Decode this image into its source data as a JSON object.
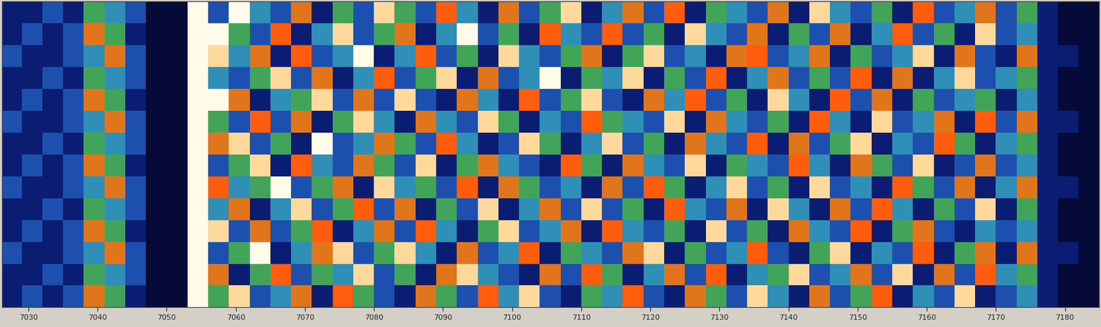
{
  "chart_data": {
    "type": "heatmap",
    "x": [
      7027.5,
      7030.5,
      7033.5,
      7036.5,
      7039.5,
      7042.5,
      7045.5,
      7048.5,
      7051.5,
      7054.5,
      7057.5,
      7060.5,
      7063.5,
      7066.5,
      7069.5,
      7072.5,
      7075.5,
      7078.5,
      7081.5,
      7084.5,
      7087.5,
      7090.5,
      7093.5,
      7096.5,
      7099.5,
      7102.5,
      7105.5,
      7108.5,
      7111.5,
      7114.5,
      7117.5,
      7120.5,
      7123.5,
      7126.5,
      7129.5,
      7132.5,
      7135.5,
      7138.5,
      7141.5,
      7144.5,
      7147.5,
      7150.5,
      7153.5,
      7156.5,
      7159.5,
      7162.5,
      7165.5,
      7168.5,
      7171.5,
      7174.5,
      7177.5,
      7180.5,
      7183.5
    ],
    "xlim": [
      7026.2,
      7184.9
    ],
    "xticks": [
      7030,
      7040,
      7050,
      7060,
      7070,
      7080,
      7090,
      7100,
      7110,
      7120,
      7130,
      7140,
      7150,
      7160,
      7170,
      7180
    ],
    "tick_labels": "x",
    "cells": [
      [
        2,
        2,
        3,
        2,
        5,
        4,
        3,
        1,
        1,
        9,
        3,
        9,
        4,
        3,
        6,
        2,
        5,
        3,
        8,
        5,
        3,
        7,
        4,
        2,
        6,
        3,
        5,
        8,
        2,
        4,
        6,
        3,
        7,
        2,
        5,
        4,
        3,
        6,
        2,
        8,
        4,
        3,
        5,
        2,
        7,
        3,
        4,
        6,
        3,
        5,
        2,
        1,
        1
      ],
      [
        2,
        3,
        2,
        3,
        6,
        5,
        2,
        1,
        1,
        9,
        9,
        5,
        3,
        7,
        2,
        4,
        8,
        3,
        5,
        6,
        2,
        4,
        9,
        3,
        5,
        2,
        7,
        4,
        3,
        7,
        3,
        5,
        2,
        8,
        4,
        3,
        6,
        2,
        5,
        3,
        6,
        2,
        4,
        7,
        3,
        5,
        2,
        8,
        3,
        4,
        2,
        1,
        1
      ],
      [
        3,
        2,
        2,
        3,
        4,
        6,
        3,
        1,
        1,
        9,
        8,
        4,
        6,
        2,
        7,
        3,
        4,
        9,
        2,
        4,
        7,
        3,
        5,
        2,
        8,
        4,
        3,
        5,
        6,
        2,
        5,
        8,
        3,
        4,
        2,
        6,
        7,
        3,
        4,
        6,
        2,
        5,
        3,
        4,
        8,
        2,
        6,
        3,
        2,
        6,
        2,
        2,
        1
      ],
      [
        2,
        2,
        3,
        2,
        5,
        4,
        3,
        1,
        1,
        9,
        4,
        3,
        5,
        8,
        3,
        6,
        2,
        4,
        7,
        3,
        5,
        8,
        2,
        6,
        3,
        4,
        9,
        2,
        5,
        4,
        8,
        2,
        5,
        3,
        7,
        2,
        4,
        6,
        3,
        5,
        3,
        7,
        2,
        6,
        2,
        4,
        8,
        3,
        4,
        5,
        2,
        1,
        1
      ],
      [
        2,
        3,
        2,
        3,
        6,
        5,
        2,
        1,
        1,
        9,
        9,
        6,
        2,
        4,
        5,
        8,
        3,
        6,
        3,
        8,
        3,
        2,
        6,
        4,
        2,
        7,
        3,
        5,
        8,
        3,
        2,
        6,
        4,
        7,
        3,
        5,
        2,
        8,
        4,
        2,
        7,
        3,
        6,
        2,
        5,
        3,
        4,
        5,
        2,
        4,
        2,
        1,
        1
      ],
      [
        3,
        2,
        2,
        3,
        4,
        6,
        3,
        1,
        1,
        9,
        5,
        3,
        7,
        3,
        6,
        2,
        5,
        8,
        4,
        2,
        6,
        4,
        3,
        8,
        5,
        2,
        4,
        3,
        7,
        5,
        4,
        3,
        8,
        2,
        6,
        4,
        3,
        5,
        2,
        7,
        4,
        2,
        8,
        3,
        4,
        6,
        2,
        7,
        3,
        6,
        2,
        2,
        1
      ],
      [
        2,
        2,
        3,
        2,
        5,
        4,
        3,
        1,
        1,
        9,
        6,
        8,
        3,
        5,
        2,
        9,
        3,
        4,
        6,
        5,
        3,
        7,
        4,
        2,
        3,
        8,
        5,
        2,
        4,
        8,
        3,
        5,
        2,
        6,
        4,
        3,
        7,
        2,
        6,
        3,
        5,
        8,
        2,
        4,
        3,
        7,
        5,
        2,
        4,
        5,
        2,
        1,
        1
      ],
      [
        2,
        3,
        2,
        3,
        6,
        5,
        2,
        1,
        1,
        9,
        3,
        5,
        8,
        2,
        7,
        4,
        3,
        6,
        5,
        3,
        8,
        2,
        5,
        6,
        4,
        3,
        2,
        7,
        5,
        2,
        6,
        4,
        3,
        8,
        2,
        5,
        4,
        3,
        7,
        4,
        2,
        6,
        5,
        3,
        8,
        2,
        3,
        6,
        3,
        4,
        2,
        1,
        1
      ],
      [
        3,
        2,
        2,
        3,
        4,
        6,
        3,
        1,
        1,
        9,
        7,
        4,
        5,
        9,
        3,
        5,
        6,
        2,
        8,
        4,
        5,
        3,
        7,
        2,
        6,
        5,
        3,
        4,
        2,
        6,
        3,
        7,
        5,
        2,
        4,
        8,
        3,
        5,
        2,
        8,
        3,
        4,
        2,
        7,
        5,
        3,
        6,
        2,
        4,
        6,
        2,
        2,
        1
      ],
      [
        2,
        2,
        3,
        2,
        5,
        4,
        3,
        1,
        1,
        9,
        4,
        6,
        2,
        4,
        8,
        3,
        5,
        7,
        3,
        6,
        2,
        5,
        3,
        8,
        2,
        4,
        6,
        3,
        8,
        3,
        5,
        2,
        7,
        4,
        3,
        6,
        2,
        8,
        4,
        2,
        6,
        3,
        7,
        4,
        2,
        5,
        3,
        8,
        2,
        5,
        2,
        1,
        1
      ],
      [
        2,
        3,
        2,
        3,
        6,
        5,
        2,
        1,
        1,
        9,
        8,
        3,
        6,
        3,
        5,
        7,
        2,
        4,
        6,
        3,
        7,
        4,
        2,
        5,
        8,
        3,
        4,
        6,
        2,
        7,
        4,
        3,
        5,
        2,
        8,
        3,
        5,
        2,
        6,
        4,
        3,
        7,
        2,
        5,
        6,
        3,
        2,
        4,
        3,
        4,
        2,
        1,
        1
      ],
      [
        3,
        2,
        2,
        3,
        4,
        6,
        3,
        1,
        1,
        9,
        3,
        5,
        9,
        2,
        4,
        6,
        8,
        3,
        5,
        8,
        4,
        2,
        6,
        3,
        4,
        7,
        2,
        5,
        4,
        3,
        6,
        8,
        2,
        5,
        3,
        4,
        7,
        3,
        2,
        5,
        8,
        2,
        4,
        3,
        7,
        2,
        5,
        6,
        2,
        6,
        2,
        2,
        1
      ],
      [
        2,
        2,
        3,
        2,
        5,
        4,
        3,
        1,
        1,
        9,
        6,
        2,
        5,
        7,
        3,
        5,
        4,
        8,
        3,
        5,
        2,
        6,
        8,
        4,
        3,
        2,
        6,
        3,
        7,
        5,
        2,
        4,
        6,
        3,
        7,
        2,
        4,
        5,
        8,
        3,
        4,
        6,
        3,
        8,
        2,
        6,
        3,
        7,
        4,
        5,
        2,
        1,
        1
      ],
      [
        2,
        3,
        2,
        3,
        6,
        5,
        2,
        1,
        1,
        9,
        5,
        8,
        3,
        4,
        6,
        2,
        7,
        5,
        3,
        2,
        6,
        5,
        3,
        7,
        4,
        8,
        3,
        2,
        5,
        4,
        7,
        3,
        2,
        6,
        5,
        3,
        8,
        4,
        2,
        6,
        3,
        5,
        7,
        2,
        4,
        3,
        8,
        2,
        3,
        4,
        2,
        1,
        1
      ]
    ]
  }
}
